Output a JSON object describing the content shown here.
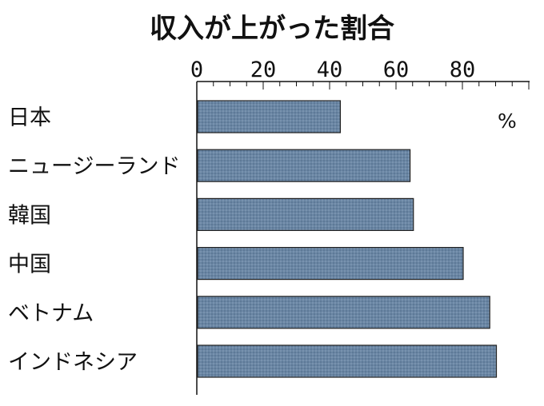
{
  "chart_data": {
    "type": "bar",
    "orientation": "horizontal",
    "title": "収入が上がった割合",
    "unit": "%",
    "categories": [
      "日本",
      "ニュージーランド",
      "韓国",
      "中国",
      "ベトナム",
      "インドネシア"
    ],
    "values": [
      43,
      64,
      65,
      80,
      88,
      90
    ],
    "xlim": [
      0,
      100
    ],
    "ticks": [
      0,
      20,
      40,
      60,
      80
    ],
    "tick_labels": [
      "0",
      "20",
      "40",
      "60",
      "80"
    ],
    "bar_color": "#6a86a4",
    "grid": false,
    "legend": "none"
  }
}
